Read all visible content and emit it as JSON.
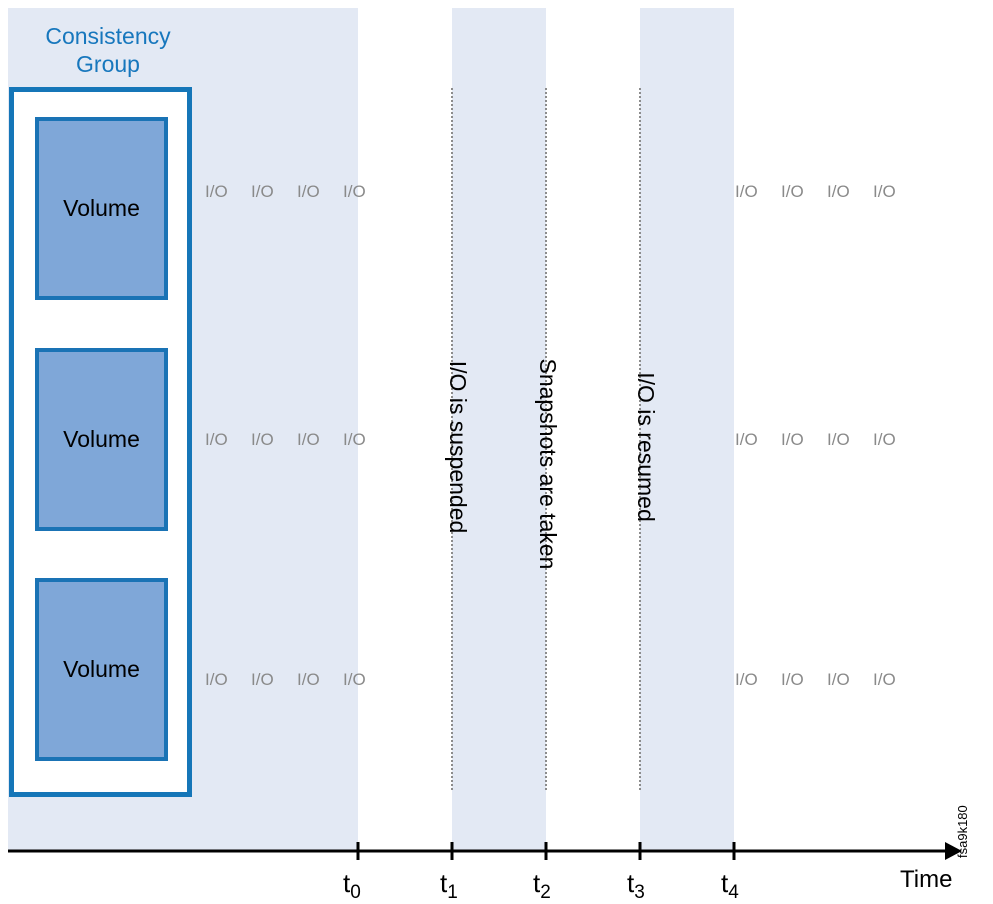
{
  "group": {
    "title_line1": "Consistency",
    "title_line2": "Group"
  },
  "volumes": [
    "Volume",
    "Volume",
    "Volume"
  ],
  "io_rows": [
    {
      "left": [
        "I/O",
        "I/O",
        "I/O",
        "I/O"
      ],
      "right": [
        "I/O",
        "I/O",
        "I/O",
        "I/O"
      ]
    },
    {
      "left": [
        "I/O",
        "I/O",
        "I/O",
        "I/O"
      ],
      "right": [
        "I/O",
        "I/O",
        "I/O",
        "I/O"
      ]
    },
    {
      "left": [
        "I/O",
        "I/O",
        "I/O",
        "I/O"
      ],
      "right": [
        "I/O",
        "I/O",
        "I/O",
        "I/O"
      ]
    }
  ],
  "phases": {
    "suspended": "I/O is suspended",
    "snapshots": "Snapshots are taken",
    "resumed": "I/O is resumed"
  },
  "timeline": {
    "ticks": [
      {
        "base": "t",
        "sub": "0"
      },
      {
        "base": "t",
        "sub": "1"
      },
      {
        "base": "t",
        "sub": "2"
      },
      {
        "base": "t",
        "sub": "3"
      },
      {
        "base": "t",
        "sub": "4"
      }
    ],
    "axis_label": "Time"
  },
  "figure_id": "fsa9k180",
  "colors": {
    "band": "#e3e9f4",
    "accent": "#1576b8",
    "volume_fill": "#7fa7d8",
    "io_text": "#8a8a8a"
  }
}
